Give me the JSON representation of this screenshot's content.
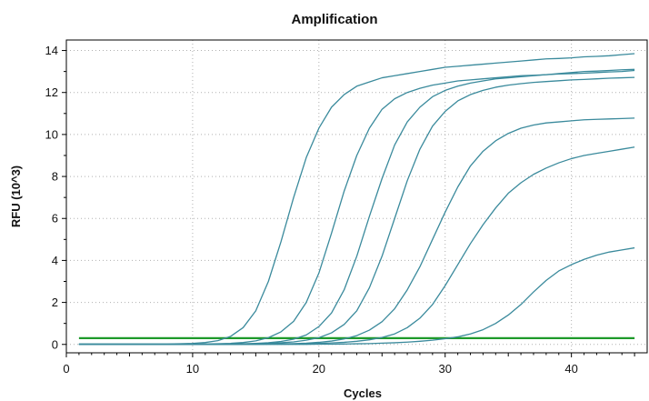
{
  "chart_data": {
    "type": "line",
    "title": "Amplification",
    "xlabel": "Cycles",
    "ylabel": "RFU (10^3)",
    "xlim": [
      0,
      46
    ],
    "ylim": [
      -0.4,
      14.5
    ],
    "xticks": [
      0,
      10,
      20,
      30,
      40
    ],
    "yticks": [
      0,
      2,
      4,
      6,
      8,
      10,
      12,
      14
    ],
    "grid": true,
    "colors": {
      "curve": "#3a8a9c",
      "threshold": "#1e9a2a",
      "grid": "#b0b0b0",
      "frame": "#000000"
    },
    "threshold": 0.3,
    "x": [
      1,
      2,
      3,
      4,
      5,
      6,
      7,
      8,
      9,
      10,
      11,
      12,
      13,
      14,
      15,
      16,
      17,
      18,
      19,
      20,
      21,
      22,
      23,
      24,
      25,
      26,
      27,
      28,
      29,
      30,
      31,
      32,
      33,
      34,
      35,
      36,
      37,
      38,
      39,
      40,
      41,
      42,
      43,
      44,
      45
    ],
    "series": [
      {
        "values": [
          0.02,
          0.02,
          0.02,
          0.02,
          0.02,
          0.02,
          0.02,
          0.02,
          0.03,
          0.05,
          0.09,
          0.18,
          0.38,
          0.8,
          1.6,
          3.0,
          4.9,
          7.0,
          8.9,
          10.3,
          11.3,
          11.9,
          12.3,
          12.5,
          12.7,
          12.8,
          12.9,
          13.0,
          13.1,
          13.2,
          13.25,
          13.3,
          13.35,
          13.4,
          13.45,
          13.5,
          13.55,
          13.6,
          13.62,
          13.65,
          13.7,
          13.72,
          13.75,
          13.8,
          13.85
        ]
      },
      {
        "values": [
          0.01,
          0.01,
          0.01,
          0.01,
          0.01,
          0.01,
          0.01,
          0.01,
          0.01,
          0.01,
          0.02,
          0.03,
          0.05,
          0.09,
          0.17,
          0.32,
          0.6,
          1.1,
          2.0,
          3.4,
          5.3,
          7.3,
          9.0,
          10.3,
          11.2,
          11.7,
          12.0,
          12.2,
          12.35,
          12.45,
          12.55,
          12.6,
          12.65,
          12.7,
          12.75,
          12.8,
          12.82,
          12.85,
          12.88,
          12.9,
          12.92,
          12.95,
          12.98,
          13.0,
          13.05
        ]
      },
      {
        "values": [
          0.01,
          0.01,
          0.01,
          0.01,
          0.01,
          0.01,
          0.01,
          0.01,
          0.01,
          0.01,
          0.01,
          0.01,
          0.02,
          0.03,
          0.05,
          0.08,
          0.14,
          0.25,
          0.45,
          0.85,
          1.5,
          2.6,
          4.2,
          6.1,
          7.9,
          9.5,
          10.6,
          11.3,
          11.8,
          12.1,
          12.3,
          12.45,
          12.55,
          12.65,
          12.7,
          12.75,
          12.8,
          12.85,
          12.9,
          12.95,
          13.0,
          13.02,
          13.05,
          13.08,
          13.1
        ]
      },
      {
        "values": [
          0.0,
          0.0,
          0.0,
          0.0,
          0.0,
          0.0,
          0.0,
          0.0,
          0.0,
          0.0,
          0.0,
          0.01,
          0.01,
          0.02,
          0.03,
          0.05,
          0.08,
          0.12,
          0.2,
          0.32,
          0.55,
          0.95,
          1.6,
          2.7,
          4.2,
          6.0,
          7.8,
          9.3,
          10.4,
          11.1,
          11.6,
          11.9,
          12.1,
          12.25,
          12.35,
          12.42,
          12.48,
          12.52,
          12.56,
          12.6,
          12.62,
          12.65,
          12.68,
          12.7,
          12.72
        ]
      },
      {
        "values": [
          0.0,
          0.0,
          0.0,
          0.0,
          0.0,
          0.0,
          0.0,
          0.0,
          0.0,
          0.0,
          0.0,
          0.0,
          0.0,
          0.01,
          0.01,
          0.02,
          0.03,
          0.04,
          0.06,
          0.1,
          0.16,
          0.26,
          0.42,
          0.68,
          1.08,
          1.7,
          2.6,
          3.7,
          5.0,
          6.3,
          7.5,
          8.5,
          9.2,
          9.7,
          10.05,
          10.3,
          10.45,
          10.55,
          10.6,
          10.65,
          10.7,
          10.72,
          10.74,
          10.76,
          10.78
        ]
      },
      {
        "values": [
          0.0,
          0.0,
          0.0,
          0.0,
          0.0,
          0.0,
          0.0,
          0.0,
          0.0,
          0.0,
          0.0,
          0.0,
          0.0,
          0.0,
          0.0,
          0.01,
          0.01,
          0.02,
          0.03,
          0.05,
          0.07,
          0.1,
          0.15,
          0.22,
          0.33,
          0.5,
          0.8,
          1.25,
          1.9,
          2.8,
          3.8,
          4.8,
          5.7,
          6.5,
          7.2,
          7.7,
          8.1,
          8.4,
          8.65,
          8.85,
          9.0,
          9.1,
          9.2,
          9.3,
          9.4
        ]
      },
      {
        "values": [
          0.0,
          0.0,
          0.0,
          0.0,
          0.0,
          0.0,
          0.0,
          0.0,
          0.0,
          0.0,
          0.0,
          0.0,
          0.0,
          0.0,
          0.0,
          0.0,
          0.0,
          0.0,
          0.0,
          0.01,
          0.01,
          0.02,
          0.03,
          0.04,
          0.06,
          0.08,
          0.11,
          0.15,
          0.2,
          0.27,
          0.36,
          0.5,
          0.7,
          1.0,
          1.4,
          1.9,
          2.5,
          3.05,
          3.5,
          3.8,
          4.05,
          4.25,
          4.4,
          4.5,
          4.6
        ]
      }
    ]
  }
}
